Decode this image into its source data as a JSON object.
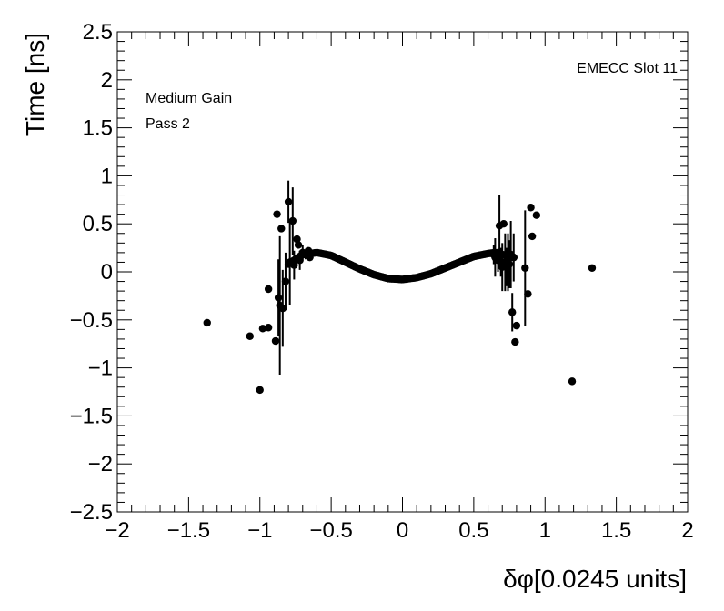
{
  "chart_data": {
    "type": "scatter",
    "title": "",
    "xlabel": "δφ[0.0245 units]",
    "ylabel": "Time [ns]",
    "xlim": [
      -2,
      2
    ],
    "ylim": [
      -2.5,
      2.5
    ],
    "xticks": [
      "−2",
      "−1.5",
      "−1",
      "−0.5",
      "0",
      "0.5",
      "1",
      "1.5",
      "2"
    ],
    "yticks": [
      "−2.5",
      "−2",
      "−1.5",
      "−1",
      "−0.5",
      "0",
      "0.5",
      "1",
      "1.5",
      "2",
      "2.5"
    ],
    "annotations": {
      "top_right": "EMECC Slot 11",
      "line1": "Medium Gain",
      "line2": "Pass 2"
    },
    "series": [
      {
        "name": "EMECC Slot 11",
        "marker": "circle",
        "color": "#000000",
        "points": [
          {
            "x": -1.37,
            "y": -0.53,
            "err": 0.0
          },
          {
            "x": -1.07,
            "y": -0.67,
            "err": 0.0
          },
          {
            "x": -1.0,
            "y": -1.23,
            "err": 0.0
          },
          {
            "x": -0.98,
            "y": -0.59,
            "err": 0.0
          },
          {
            "x": -0.94,
            "y": -0.58,
            "err": 0.0
          },
          {
            "x": -0.94,
            "y": -0.18,
            "err": 0.0
          },
          {
            "x": -0.89,
            "y": -0.72,
            "err": 0.0
          },
          {
            "x": -0.88,
            "y": 0.6,
            "err": 0.0
          },
          {
            "x": -0.87,
            "y": -0.27,
            "err": 0.4
          },
          {
            "x": -0.86,
            "y": -0.35,
            "err": 0.72
          },
          {
            "x": -0.85,
            "y": 0.45,
            "err": 0.0
          },
          {
            "x": -0.84,
            "y": -0.38,
            "err": 0.4
          },
          {
            "x": -0.82,
            "y": -0.1,
            "err": 0.3
          },
          {
            "x": -0.8,
            "y": 0.73,
            "err": 0.22
          },
          {
            "x": -0.79,
            "y": 0.1,
            "err": 0.45
          },
          {
            "x": -0.77,
            "y": 0.53,
            "err": 0.35
          },
          {
            "x": -0.76,
            "y": 0.07,
            "err": 0.15
          },
          {
            "x": -0.74,
            "y": 0.34,
            "err": 0.0
          },
          {
            "x": -0.73,
            "y": 0.28,
            "err": 0.0
          },
          {
            "x": -0.72,
            "y": 0.12,
            "err": 0.1
          },
          {
            "x": -0.7,
            "y": 0.2,
            "err": 0.08
          },
          {
            "x": -0.68,
            "y": 0.18,
            "err": 0.05
          },
          {
            "x": -0.66,
            "y": 0.22,
            "err": 0.0
          },
          {
            "x": -0.65,
            "y": 0.15,
            "err": 0.0
          },
          {
            "x": 0.64,
            "y": 0.18,
            "err": 0.1
          },
          {
            "x": 0.65,
            "y": 0.15,
            "err": 0.2
          },
          {
            "x": 0.67,
            "y": 0.12,
            "err": 0.12
          },
          {
            "x": 0.68,
            "y": 0.48,
            "err": 0.32
          },
          {
            "x": 0.69,
            "y": 0.1,
            "err": 0.15
          },
          {
            "x": 0.7,
            "y": 0.05,
            "err": 0.25
          },
          {
            "x": 0.71,
            "y": 0.5,
            "err": 0.0
          },
          {
            "x": 0.72,
            "y": 0.1,
            "err": 0.3
          },
          {
            "x": 0.73,
            "y": 0.05,
            "err": 0.2
          },
          {
            "x": 0.74,
            "y": 0.1,
            "err": 0.3
          },
          {
            "x": 0.75,
            "y": 0.08,
            "err": 0.25
          },
          {
            "x": 0.76,
            "y": 0.18,
            "err": 0.35
          },
          {
            "x": 0.77,
            "y": -0.42,
            "err": 0.2
          },
          {
            "x": 0.78,
            "y": 0.15,
            "err": 0.25
          },
          {
            "x": 0.79,
            "y": -0.73,
            "err": 0.0
          },
          {
            "x": 0.8,
            "y": -0.56,
            "err": 0.0
          },
          {
            "x": 0.86,
            "y": 0.04,
            "err": 0.6
          },
          {
            "x": 0.88,
            "y": -0.23,
            "err": 0.0
          },
          {
            "x": 0.9,
            "y": 0.67,
            "err": 0.0
          },
          {
            "x": 0.91,
            "y": 0.37,
            "err": 0.0
          },
          {
            "x": 0.94,
            "y": 0.59,
            "err": 0.0
          },
          {
            "x": 1.19,
            "y": -1.14,
            "err": 0.0
          },
          {
            "x": 1.33,
            "y": 0.04,
            "err": 0.0
          }
        ],
        "curve": {
          "x_min": -0.8,
          "x_max": 0.78,
          "count": 150,
          "x": [
            -0.8,
            -0.7,
            -0.6,
            -0.5,
            -0.4,
            -0.3,
            -0.2,
            -0.1,
            0.0,
            0.1,
            0.2,
            0.3,
            0.4,
            0.5,
            0.6,
            0.65,
            0.7,
            0.78
          ],
          "y": [
            0.08,
            0.18,
            0.2,
            0.17,
            0.1,
            0.03,
            -0.03,
            -0.07,
            -0.08,
            -0.06,
            -0.02,
            0.04,
            0.1,
            0.16,
            0.19,
            0.2,
            0.18,
            0.15
          ]
        }
      }
    ]
  }
}
